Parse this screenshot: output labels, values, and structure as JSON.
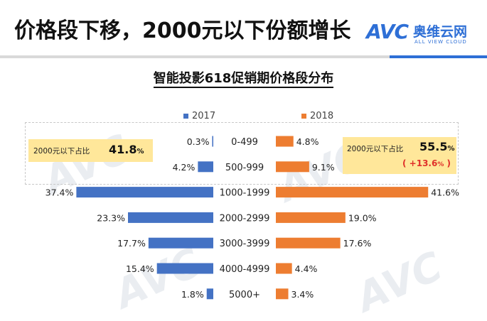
{
  "header": {
    "title": "价格段下移，2000元以下份额增长",
    "logo_mark": "AVC",
    "logo_cn": "奥维云网",
    "logo_en": "ALL VIEW CLOUD"
  },
  "callouts": {
    "left": {
      "label": "2000元以下占比",
      "value": "41.8",
      "unit": "%"
    },
    "right": {
      "label": "2000元以下占比",
      "value": "55.5",
      "unit": "%",
      "change_open": "( +13.6",
      "change_unit": "%",
      "change_close": " )"
    }
  },
  "colors": {
    "series_2017": "#4472c4",
    "series_2018": "#ed7d31",
    "callout_fill": "#ffe79a",
    "accent": "#2e6fd6"
  },
  "chart_data": {
    "type": "bar",
    "orientation": "horizontal-butterfly",
    "title": "智能投影618促销期价格段分布",
    "categories": [
      "0-499",
      "500-999",
      "1000-1999",
      "2000-2999",
      "3000-3999",
      "4000-4999",
      "5000+"
    ],
    "series": [
      {
        "name": "2017",
        "values": [
          0.3,
          4.2,
          37.4,
          23.3,
          17.7,
          15.4,
          1.8
        ],
        "labels": [
          "0.3%",
          "4.2%",
          "37.4%",
          "23.3%",
          "17.7%",
          "15.4%",
          "1.8%"
        ]
      },
      {
        "name": "2018",
        "values": [
          4.8,
          9.1,
          41.6,
          19.0,
          17.6,
          4.4,
          3.4
        ],
        "labels": [
          "4.8%",
          "9.1%",
          "41.6%",
          "19.0%",
          "17.6%",
          "4.4%",
          "3.4%"
        ]
      }
    ],
    "unit": "%",
    "legend_position": "top",
    "grid": false
  }
}
